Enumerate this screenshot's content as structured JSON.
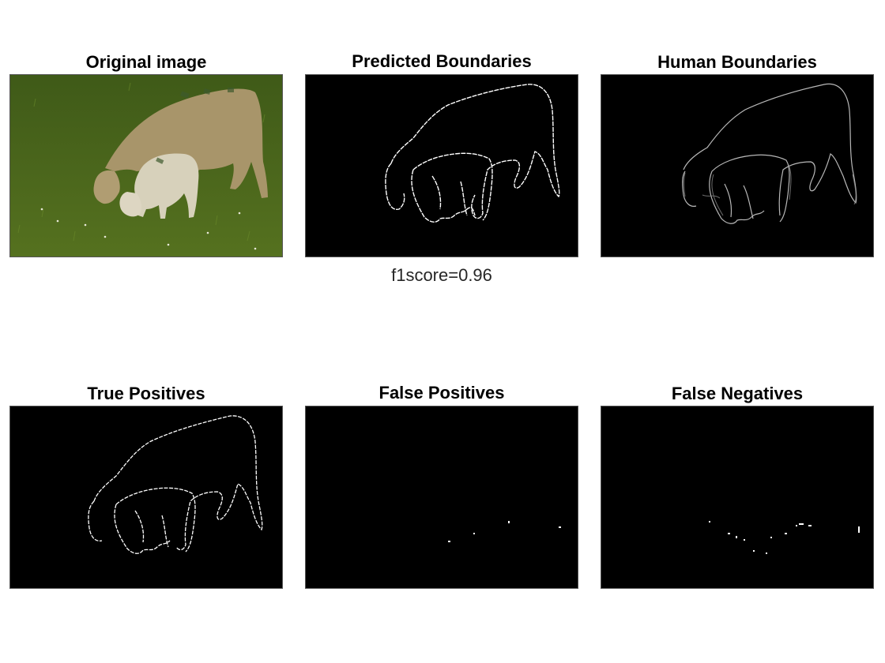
{
  "panels": {
    "original": {
      "title": "Original image"
    },
    "predicted": {
      "title": "Predicted Boundaries"
    },
    "human": {
      "title": "Human Boundaries"
    },
    "true_positives": {
      "title": "True Positives"
    },
    "false_positives": {
      "title": "False Positives"
    },
    "false_negatives": {
      "title": "False Negatives"
    }
  },
  "metric": {
    "caption": "f1score=0.96"
  },
  "colors": {
    "background": "#ffffff",
    "panel_bg": "#000000",
    "edge": "#ffffff",
    "grass": "#4f6a1f",
    "sheep": "#a8956a",
    "lamb": "#d7d1bb"
  }
}
